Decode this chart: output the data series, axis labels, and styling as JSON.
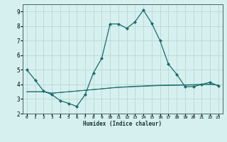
{
  "xlabel": "Humidex (Indice chaleur)",
  "ylabel": "",
  "background_color": "#d6f0ef",
  "grid_color": "#b8d8d6",
  "line_color": "#1a6b6b",
  "xlim": [
    -0.5,
    23.5
  ],
  "ylim": [
    2,
    9.5
  ],
  "yticks": [
    2,
    3,
    4,
    5,
    6,
    7,
    8,
    9
  ],
  "xtick_labels": [
    "0",
    "1",
    "2",
    "3",
    "4",
    "5",
    "6",
    "7",
    "8",
    "9",
    "10",
    "11",
    "12",
    "13",
    "14",
    "15",
    "16",
    "17",
    "18",
    "19",
    "20",
    "21",
    "22",
    "23"
  ],
  "xticks": [
    0,
    1,
    2,
    3,
    4,
    5,
    6,
    7,
    8,
    9,
    10,
    11,
    12,
    13,
    14,
    15,
    16,
    17,
    18,
    19,
    20,
    21,
    22,
    23
  ],
  "series1_x": [
    0,
    1,
    2,
    3,
    4,
    5,
    6,
    7,
    8,
    9,
    10,
    11,
    12,
    13,
    14,
    15,
    16,
    17,
    18,
    19,
    20,
    21,
    22,
    23
  ],
  "series1_y": [
    5.0,
    4.3,
    3.55,
    3.3,
    2.9,
    2.7,
    2.5,
    3.3,
    4.8,
    5.8,
    8.15,
    8.15,
    7.85,
    8.3,
    9.1,
    8.2,
    7.0,
    5.4,
    4.7,
    3.85,
    3.85,
    4.0,
    4.15,
    3.9
  ],
  "series2_x": [
    0,
    1,
    2,
    3,
    4,
    5,
    6,
    7,
    8,
    9,
    10,
    11,
    12,
    13,
    14,
    15,
    16,
    17,
    18,
    19,
    20,
    21,
    22,
    23
  ],
  "series2_y": [
    3.5,
    3.5,
    3.5,
    3.4,
    3.45,
    3.5,
    3.55,
    3.6,
    3.65,
    3.7,
    3.75,
    3.8,
    3.82,
    3.85,
    3.87,
    3.9,
    3.92,
    3.93,
    3.94,
    3.95,
    3.96,
    4.0,
    4.0,
    3.95
  ],
  "series3_x": [
    0,
    1,
    2,
    3,
    4,
    5,
    6,
    7,
    8,
    9,
    10,
    11,
    12,
    13,
    14,
    15,
    16,
    17,
    18,
    19,
    20,
    21,
    22,
    23
  ],
  "series3_y": [
    3.5,
    3.5,
    3.5,
    3.4,
    3.45,
    3.5,
    3.55,
    3.6,
    3.65,
    3.7,
    3.76,
    3.81,
    3.84,
    3.88,
    3.9,
    3.93,
    3.95,
    3.96,
    3.97,
    3.98,
    3.99,
    4.0,
    4.01,
    3.96
  ]
}
